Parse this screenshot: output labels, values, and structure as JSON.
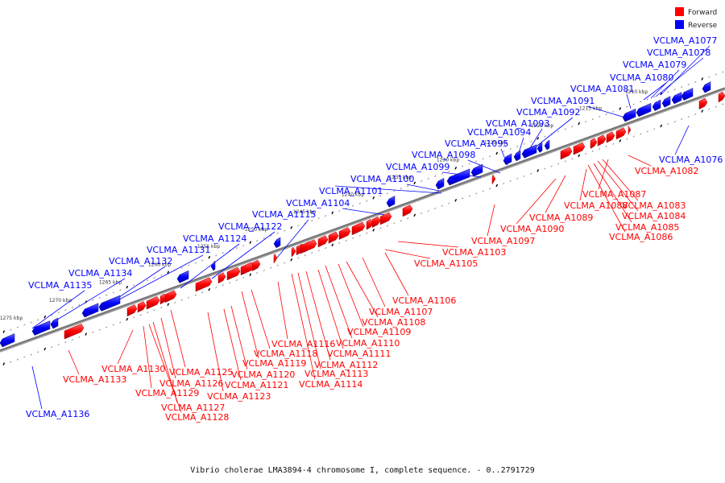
{
  "legend": [
    {
      "label": "Forward",
      "color": "#ff0000"
    },
    {
      "label": "Reverse",
      "color": "#0000ff"
    }
  ],
  "caption": "Vibrio cholerae LMA3894-4 chromosome I, complete sequence. - 0..2791729",
  "chart_data": {
    "type": "diagram",
    "ticks": [
      {
        "label": "1210 kbp",
        "kbp": 1210
      },
      {
        "label": "1215 kbp",
        "kbp": 1215
      },
      {
        "label": "1220 kbp",
        "kbp": 1220
      },
      {
        "label": "1225 kbp",
        "kbp": 1225
      },
      {
        "label": "1230 kbp",
        "kbp": 1230
      },
      {
        "label": "1235 kbp",
        "kbp": 1235
      },
      {
        "label": "1240 kbp",
        "kbp": 1240
      },
      {
        "label": "1245 kbp",
        "kbp": 1245
      },
      {
        "label": "1250 kbp",
        "kbp": 1250
      },
      {
        "label": "1255 kbp",
        "kbp": 1255
      },
      {
        "label": "1260 kbp",
        "kbp": 1260
      },
      {
        "label": "1265 kbp",
        "kbp": 1265
      },
      {
        "label": "1270 kbp",
        "kbp": 1270
      },
      {
        "label": "1275 kbp",
        "kbp": 1275
      }
    ],
    "reverse_genes": [
      "VCLMA_A1077",
      "VCLMA_A1078",
      "VCLMA_A1079",
      "VCLMA_A1080",
      "VCLMA_A1081",
      "VCLMA_A1091",
      "VCLMA_A1092",
      "VCLMA_A1093",
      "VCLMA_A1094",
      "VCLMA_A1095",
      "VCLMA_A1098",
      "VCLMA_A1099",
      "VCLMA_A1100",
      "VCLMA_A1101",
      "VCLMA_A1104",
      "VCLMA_A1115",
      "VCLMA_A1122",
      "VCLMA_A1124",
      "VCLMA_A1131",
      "VCLMA_A1132",
      "VCLMA_A1134",
      "VCLMA_A1135",
      "VCLMA_A1076",
      "VCLMA_A1136"
    ],
    "forward_genes": [
      "VCLMA_A1082",
      "VCLMA_A1083",
      "VCLMA_A1084",
      "VCLMA_A1085",
      "VCLMA_A1086",
      "VCLMA_A1087",
      "VCLMA_A1088",
      "VCLMA_A1089",
      "VCLMA_A1090",
      "VCLMA_A1097",
      "VCLMA_A1103",
      "VCLMA_A1105",
      "VCLMA_A1106",
      "VCLMA_A1107",
      "VCLMA_A1108",
      "VCLMA_A1109",
      "VCLMA_A1110",
      "VCLMA_A1111",
      "VCLMA_A1112",
      "VCLMA_A1113",
      "VCLMA_A1114",
      "VCLMA_A1116",
      "VCLMA_A1118",
      "VCLMA_A1119",
      "VCLMA_A1120",
      "VCLMA_A1121",
      "VCLMA_A1123",
      "VCLMA_A1125",
      "VCLMA_A1126",
      "VCLMA_A1127",
      "VCLMA_A1128",
      "VCLMA_A1129",
      "VCLMA_A1130",
      "VCLMA_A1133"
    ]
  }
}
